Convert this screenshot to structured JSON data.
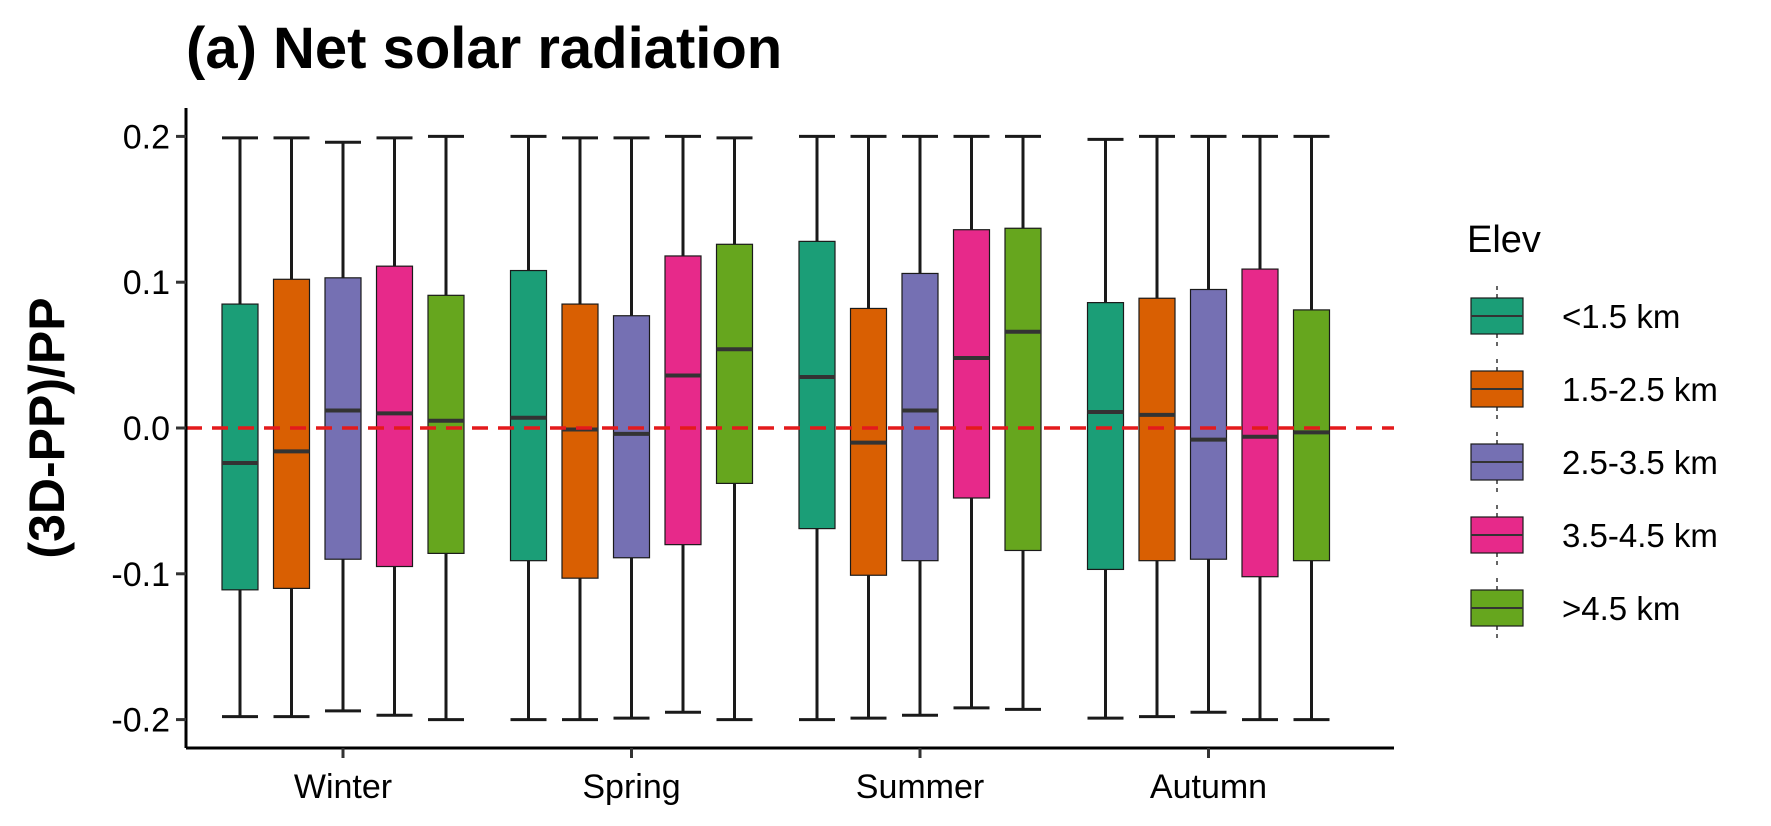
{
  "chart_data": {
    "type": "boxplot",
    "title": "(a) Net solar radiation",
    "ylabel": "(3D-PP)/PP",
    "xlabel": "",
    "ylim": [
      -0.22,
      0.22
    ],
    "yticks": [
      -0.2,
      -0.1,
      0.0,
      0.1,
      0.2
    ],
    "ytick_labels": [
      "-0.2",
      "-0.1",
      "0.0",
      "0.1",
      "0.2"
    ],
    "categories": [
      "Winter",
      "Spring",
      "Summer",
      "Autumn"
    ],
    "reference_line": {
      "y": 0.0,
      "style": "dashed",
      "color": "#e41a1c"
    },
    "legend": {
      "title": "Elev",
      "position": "right"
    },
    "grid": false,
    "series": [
      {
        "name": "<1.5 km",
        "color": "#1b9e77",
        "boxes": [
          {
            "min": -0.198,
            "q1": -0.111,
            "median": -0.024,
            "q3": 0.085,
            "max": 0.199
          },
          {
            "min": -0.2,
            "q1": -0.091,
            "median": 0.007,
            "q3": 0.108,
            "max": 0.2
          },
          {
            "min": -0.2,
            "q1": -0.069,
            "median": 0.035,
            "q3": 0.128,
            "max": 0.2
          },
          {
            "min": -0.199,
            "q1": -0.097,
            "median": 0.011,
            "q3": 0.086,
            "max": 0.198
          }
        ]
      },
      {
        "name": "1.5-2.5 km",
        "color": "#d95f02",
        "boxes": [
          {
            "min": -0.198,
            "q1": -0.11,
            "median": -0.016,
            "q3": 0.102,
            "max": 0.199
          },
          {
            "min": -0.2,
            "q1": -0.103,
            "median": -0.001,
            "q3": 0.085,
            "max": 0.199
          },
          {
            "min": -0.199,
            "q1": -0.101,
            "median": -0.01,
            "q3": 0.082,
            "max": 0.2
          },
          {
            "min": -0.198,
            "q1": -0.091,
            "median": 0.009,
            "q3": 0.089,
            "max": 0.2
          }
        ]
      },
      {
        "name": "2.5-3.5 km",
        "color": "#7570b3",
        "boxes": [
          {
            "min": -0.194,
            "q1": -0.09,
            "median": 0.012,
            "q3": 0.103,
            "max": 0.196
          },
          {
            "min": -0.199,
            "q1": -0.089,
            "median": -0.004,
            "q3": 0.077,
            "max": 0.199
          },
          {
            "min": -0.197,
            "q1": -0.091,
            "median": 0.012,
            "q3": 0.106,
            "max": 0.2
          },
          {
            "min": -0.195,
            "q1": -0.09,
            "median": -0.008,
            "q3": 0.095,
            "max": 0.2
          }
        ]
      },
      {
        "name": "3.5-4.5 km",
        "color": "#e7298a",
        "boxes": [
          {
            "min": -0.197,
            "q1": -0.095,
            "median": 0.01,
            "q3": 0.111,
            "max": 0.199
          },
          {
            "min": -0.195,
            "q1": -0.08,
            "median": 0.036,
            "q3": 0.118,
            "max": 0.2
          },
          {
            "min": -0.192,
            "q1": -0.048,
            "median": 0.048,
            "q3": 0.136,
            "max": 0.2
          },
          {
            "min": -0.2,
            "q1": -0.102,
            "median": -0.006,
            "q3": 0.109,
            "max": 0.2
          }
        ]
      },
      {
        "name": ">4.5 km",
        "color": "#66a61e",
        "boxes": [
          {
            "min": -0.2,
            "q1": -0.086,
            "median": 0.005,
            "q3": 0.091,
            "max": 0.2
          },
          {
            "min": -0.2,
            "q1": -0.038,
            "median": 0.054,
            "q3": 0.126,
            "max": 0.199
          },
          {
            "min": -0.193,
            "q1": -0.084,
            "median": 0.066,
            "q3": 0.137,
            "max": 0.2
          },
          {
            "min": -0.2,
            "q1": -0.091,
            "median": -0.003,
            "q3": 0.081,
            "max": 0.2
          }
        ]
      }
    ]
  }
}
